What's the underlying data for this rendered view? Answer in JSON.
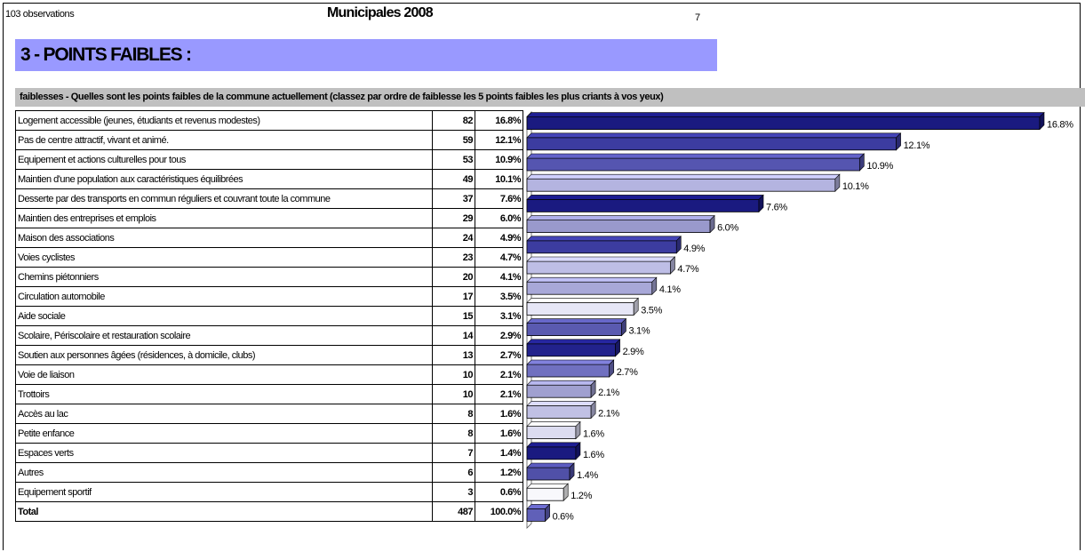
{
  "header": {
    "observations": "103 observations",
    "title": "Municipales 2008",
    "page_number": "7"
  },
  "section_title": "3 - POINTS FAIBLES :",
  "question": "faiblesses - Quelles sont les points faibles de la commune actuellement (classez par ordre de faiblesse les 5 points faibles les plus criants à vos yeux)",
  "table": {
    "rows": [
      {
        "label": "Logement accessible (jeunes, étudiants et revenus modestes)",
        "count": "82",
        "pct": "16.8%"
      },
      {
        "label": "Pas de  centre attractif, vivant et animé.",
        "count": "59",
        "pct": "12.1%"
      },
      {
        "label": "Equipement et actions culturelles pour tous",
        "count": "53",
        "pct": "10.9%"
      },
      {
        "label": "Maintien d'une population aux caractéristiques équilibrées",
        "count": "49",
        "pct": "10.1%"
      },
      {
        "label": "Desserte par des transports en commun réguliers et couvrant toute la commune",
        "count": "37",
        "pct": "7.6%"
      },
      {
        "label": "Maintien des entreprises et emplois",
        "count": "29",
        "pct": "6.0%"
      },
      {
        "label": "Maison des associations",
        "count": "24",
        "pct": "4.9%"
      },
      {
        "label": "Voies cyclistes",
        "count": "23",
        "pct": "4.7%"
      },
      {
        "label": "Chemins piétonniers",
        "count": "20",
        "pct": "4.1%"
      },
      {
        "label": "Circulation automobile",
        "count": "17",
        "pct": "3.5%"
      },
      {
        "label": "Aide sociale",
        "count": "15",
        "pct": "3.1%"
      },
      {
        "label": "Scolaire, Périscolaire et restauration scolaire",
        "count": "14",
        "pct": "2.9%"
      },
      {
        "label": "Soutien aux personnes âgées (résidences, à domicile, clubs)",
        "count": "13",
        "pct": "2.7%"
      },
      {
        "label": "Voie de liaison",
        "count": "10",
        "pct": "2.1%"
      },
      {
        "label": "Trottoirs",
        "count": "10",
        "pct": "2.1%"
      },
      {
        "label": "Accès au lac",
        "count": "8",
        "pct": "1.6%"
      },
      {
        "label": "Petite enfance",
        "count": "8",
        "pct": "1.6%"
      },
      {
        "label": "Espaces verts",
        "count": "7",
        "pct": "1.4%"
      },
      {
        "label": "Autres",
        "count": "6",
        "pct": "1.2%"
      },
      {
        "label": "Equipement sportif",
        "count": "3",
        "pct": "0.6%"
      }
    ],
    "total": {
      "label": "Total",
      "count": "487",
      "pct": "100.0%"
    }
  },
  "chart_data": {
    "type": "bar",
    "orientation": "horizontal",
    "style": "3d",
    "xlim": [
      0,
      16.8
    ],
    "grid": false,
    "categories": [
      "Logement accessible (jeunes, étudiants et revenus modestes)",
      "Pas de  centre attractif, vivant et animé.",
      "Equipement et actions culturelles pour tous",
      "Maintien d'une population aux caractéristiques équilibrées",
      "Desserte par des transports en commun réguliers et couvrant toute la commune",
      "Maintien des entreprises et emplois",
      "Maison des associations",
      "Voies cyclistes",
      "Chemins piétonniers",
      "Circulation automobile",
      "Aide sociale",
      "Scolaire, Périscolaire et restauration scolaire",
      "Soutien aux personnes âgées (résidences, à domicile, clubs)",
      "Voie de liaison",
      "Trottoirs",
      "Accès au lac",
      "Petite enfance",
      "Espaces verts",
      "Autres",
      "Equipement sportif"
    ],
    "values": [
      16.8,
      12.1,
      10.9,
      10.1,
      7.6,
      6.0,
      4.9,
      4.7,
      4.1,
      3.5,
      3.1,
      2.9,
      2.7,
      2.1,
      2.1,
      1.6,
      1.6,
      1.4,
      1.2,
      0.6
    ],
    "data_labels": [
      "16.8%",
      "12.1%",
      "10.9%",
      "10.1%",
      "7.6%",
      "6.0%",
      "4.9%",
      "4.7%",
      "4.1%",
      "3.5%",
      "3.1%",
      "2.9%",
      "2.7%",
      "2.1%",
      "2.1%",
      "1.6%",
      "1.6%",
      "1.4%",
      "1.2%",
      "0.6%"
    ],
    "colors": [
      "#1a1a80",
      "#3c3ca0",
      "#5555b0",
      "#b4b4e0",
      "#1a1a80",
      "#9999cc",
      "#3c3ca0",
      "#bebee6",
      "#a8a8d8",
      "#e6e6f6",
      "#5a5ab0",
      "#22228c",
      "#7070c0",
      "#a0a0d0",
      "#c0c0e4",
      "#dcdcf0",
      "#1a1a80",
      "#5050a8",
      "#f8f8fc",
      "#6060b8"
    ]
  }
}
